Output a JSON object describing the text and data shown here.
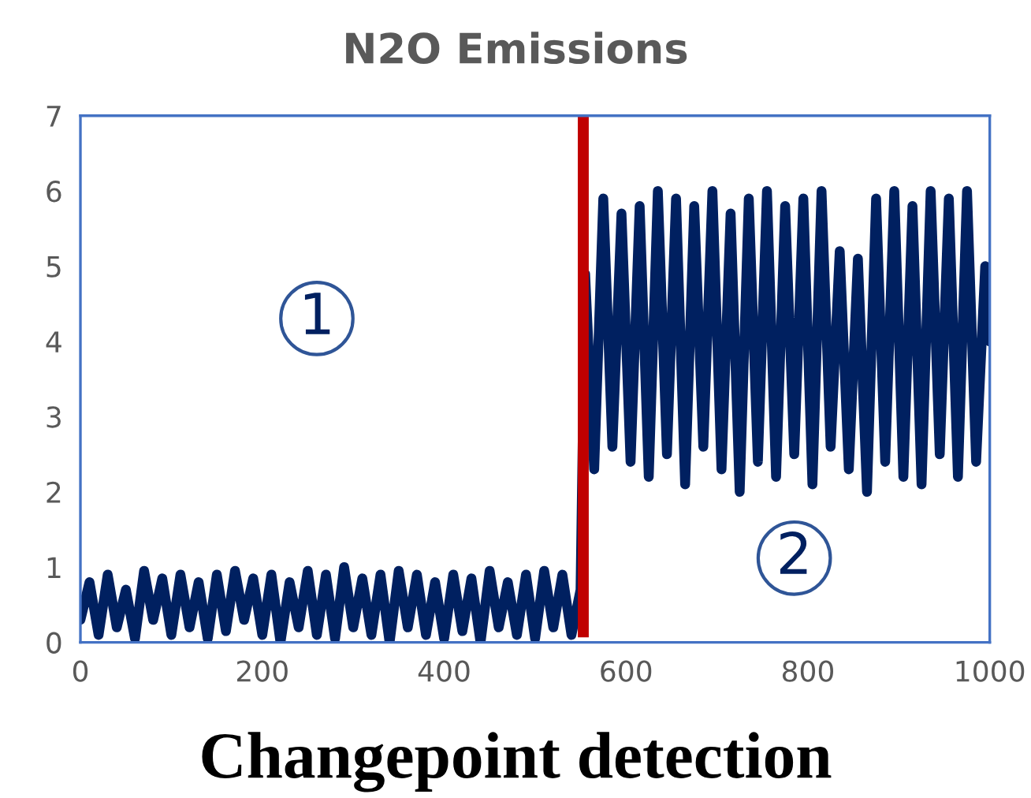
{
  "chart_data": {
    "type": "line",
    "title": "N2O Emissions",
    "xlabel": "Changepoint detection",
    "xlim": [
      0,
      1000
    ],
    "xticks": [
      0,
      200,
      400,
      600,
      800,
      1000
    ],
    "ylim": [
      0,
      7
    ],
    "yticks": [
      0,
      1,
      2,
      3,
      4,
      5,
      6,
      7
    ],
    "grid": false,
    "legend": false,
    "marker": "none",
    "line_style": "solid",
    "series": [
      {
        "color": "#002060",
        "x": [
          0,
          10,
          20,
          30,
          40,
          50,
          60,
          70,
          80,
          90,
          100,
          110,
          120,
          130,
          140,
          150,
          160,
          170,
          180,
          190,
          200,
          210,
          220,
          230,
          240,
          250,
          260,
          270,
          280,
          290,
          300,
          310,
          320,
          330,
          340,
          350,
          360,
          370,
          380,
          390,
          400,
          410,
          420,
          430,
          440,
          450,
          460,
          470,
          480,
          490,
          500,
          510,
          520,
          530,
          540,
          550,
          555,
          565,
          575,
          585,
          595,
          605,
          615,
          625,
          635,
          645,
          655,
          665,
          675,
          685,
          695,
          705,
          715,
          725,
          735,
          745,
          755,
          765,
          775,
          785,
          795,
          805,
          815,
          825,
          835,
          845,
          855,
          865,
          875,
          885,
          895,
          905,
          915,
          925,
          935,
          945,
          955,
          965,
          975,
          985,
          995,
          1000
        ],
        "values": [
          0.3,
          0.8,
          0.1,
          0.9,
          0.2,
          0.7,
          0.05,
          0.95,
          0.3,
          0.85,
          0.1,
          0.9,
          0.2,
          0.8,
          0.05,
          0.9,
          0.15,
          0.95,
          0.3,
          0.85,
          0.1,
          0.9,
          0.0,
          0.8,
          0.2,
          0.95,
          0.1,
          0.9,
          0.05,
          1.0,
          0.2,
          0.85,
          0.1,
          0.9,
          0.0,
          0.95,
          0.2,
          0.9,
          0.1,
          0.8,
          0.05,
          0.9,
          0.15,
          0.85,
          0.0,
          0.95,
          0.2,
          0.8,
          0.1,
          0.9,
          0.05,
          0.95,
          0.2,
          0.9,
          0.1,
          0.7,
          4.9,
          2.3,
          5.9,
          2.6,
          5.7,
          2.4,
          5.8,
          2.2,
          6.0,
          2.5,
          5.9,
          2.1,
          5.8,
          2.6,
          6.0,
          2.3,
          5.7,
          2.0,
          5.9,
          2.4,
          6.0,
          2.2,
          5.8,
          2.5,
          5.9,
          2.1,
          6.0,
          2.6,
          5.2,
          2.3,
          5.1,
          2.0,
          5.9,
          2.4,
          6.0,
          2.2,
          5.8,
          2.1,
          6.0,
          2.5,
          5.9,
          2.2,
          6.0,
          2.4,
          5.0,
          4.0
        ]
      }
    ],
    "ref_lines": [
      {
        "axis": "x",
        "value": 553,
        "color": "#c00000",
        "line_style": "solid"
      }
    ],
    "annotations": [
      "1",
      "2"
    ]
  }
}
